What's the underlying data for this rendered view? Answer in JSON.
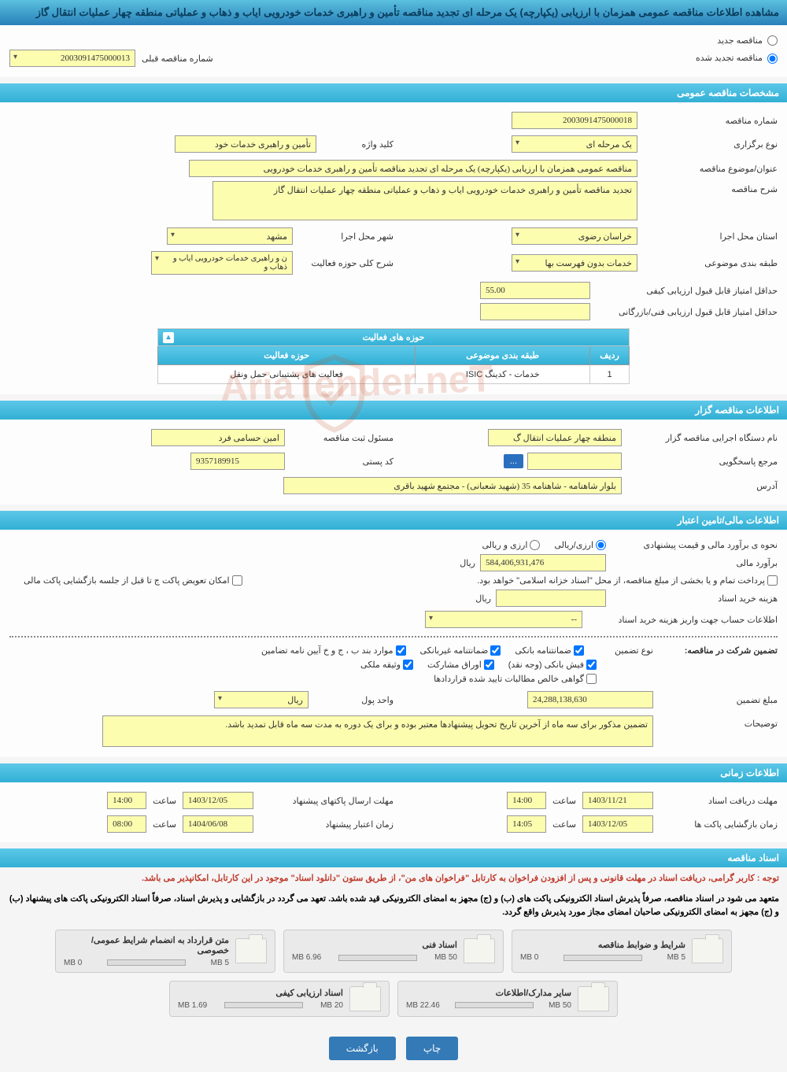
{
  "page_title": "مشاهده اطلاعات مناقصه عمومی همزمان با ارزیابی (یکپارچه) یک مرحله ای تجدید مناقصه تأمین و راهبری خدمات خودرویی ایاب و ذهاب و عملیاتی منطقه چهار عملیات انتقال گاز",
  "tender_type": {
    "option_new": "مناقصه جدید",
    "option_renewed": "مناقصه تجدید شده",
    "prev_number_label": "شماره مناقصه قبلی",
    "prev_number": "2003091475000013"
  },
  "sections": {
    "general": "مشخصات مناقصه عمومی",
    "holder": "اطلاعات مناقصه گزار",
    "financial": "اطلاعات مالی/تامین اعتبار",
    "timing": "اطلاعات زمانی",
    "documents": "اسناد مناقصه"
  },
  "general": {
    "tender_number_label": "شماره مناقصه",
    "tender_number": "2003091475000018",
    "hold_type_label": "نوع برگزاری",
    "hold_type": "یک مرحله ای",
    "keyword_label": "کلید واژه",
    "keyword": "تأمین و راهبری خدمات خود",
    "subject_label": "عنوان/موضوع مناقصه",
    "subject": "مناقصه عمومی همزمان با ارزیابی (یکپارچه) یک مرحله ای تجدید مناقصه تأمین و راهبری خدمات خودرویی",
    "description_label": "شرح مناقصه",
    "description": "تجدید مناقصه تأمین و راهبری خدمات خودرویی ایاب و ذهاب و عملیاتی منطقه چهار عملیات انتقال گاز",
    "province_label": "استان محل اجرا",
    "province": "خراسان رضوی",
    "city_label": "شهر محل اجرا",
    "city": "مشهد",
    "category_label": "طبقه بندی موضوعی",
    "category": "خدمات بدون فهرست بها",
    "activity_desc_label": "شرح کلی حوزه فعالیت",
    "activity_desc": "ن و راهبری خدمات خودرویی ایاب و ذهاب و",
    "min_quality_score_label": "حداقل امتیاز قابل قبول ارزیابی کیفی",
    "min_quality_score": "55.00",
    "min_tech_score_label": "حداقل امتیاز قابل قبول ارزیابی فنی/بازرگانی",
    "min_tech_score": ""
  },
  "activity_table": {
    "title": "حوزه های فعالیت",
    "col_row": "ردیف",
    "col_category": "طبقه بندی موضوعی",
    "col_domain": "حوزه فعالیت",
    "rows": [
      {
        "idx": "1",
        "category": "خدمات - کدینگ ISIC",
        "domain": "فعالیت های پشتیبانی حمل ونقل"
      }
    ]
  },
  "holder": {
    "exec_org_label": "نام دستگاه اجرایی مناقصه گزار",
    "exec_org": "منطقه چهار عملیات انتقال گ",
    "registrar_label": "مسئول ثبت مناقصه",
    "registrar": "امین حسامی فرد",
    "response_ref_label": "مرجع پاسخگویی",
    "response_ref": "",
    "more_btn": "...",
    "postal_label": "کد پستی",
    "postal": "9357189915",
    "address_label": "آدرس",
    "address": "بلوار شاهنامه - شاهنامه 35 (شهید شعبانی) - مجتمع شهید باقری"
  },
  "financial": {
    "estimate_method_label": "نحوه ی برآورد مالی و قیمت پیشنهادی",
    "opt_currency_rial": "ارزی/ریالی",
    "opt_currency_both": "ارزی و ریالی",
    "estimate_label": "برآورد مالی",
    "estimate_value": "584,406,931,476",
    "currency_rial": "ریال",
    "payment_note": "پرداخت تمام و یا بخشی از مبلغ مناقصه، از محل \"اسناد خزانه اسلامی\" خواهد بود.",
    "envelope_swap_note": "امکان تعویض پاکت ج تا قبل از جلسه بازگشایی پاکت مالی",
    "doc_purchase_label": "هزینه خرید اسناد",
    "doc_purchase_value": "",
    "account_info_label": "اطلاعات حساب جهت واریز هزینه خرید اسناد",
    "account_info_value": "--"
  },
  "guarantee": {
    "participate_label": "تضمین شرکت در مناقصه:",
    "type_label": "نوع تضمین",
    "type_bank_guarantee": "ضمانتنامه بانکی",
    "type_nonbank_guarantee": "ضمانتنامه غیربانکی",
    "type_items_bpjkh": "موارد بند ب ، ج و خ آیین نامه تضامین",
    "type_bank_receipt": "فیش بانکی (وجه نقد)",
    "type_bonds": "اوراق مشارکت",
    "type_property": "وثیقه ملکی",
    "type_claims": "گواهی خالص مطالبات تایید شده قراردادها",
    "amount_label": "مبلغ تضمین",
    "amount_value": "24,288,138,630",
    "currency_unit_label": "واحد پول",
    "currency_unit_value": "ریال",
    "note_label": "توضیحات",
    "note_text": "تضمین مذکور برای سه ماه از آخرین تاریخ تحویل پیشنهادها معتبر بوده و برای یک دوره به مدت سه ماه قابل تمدید باشد."
  },
  "timing": {
    "doc_deadline_label": "مهلت دریافت اسناد",
    "doc_deadline_date": "1403/11/21",
    "time_label": "ساعت",
    "doc_deadline_time": "14:00",
    "submit_deadline_label": "مهلت ارسال پاکتهای پیشنهاد",
    "submit_deadline_date": "1403/12/05",
    "submit_deadline_time": "14:00",
    "opening_label": "زمان بازگشایی پاکت ها",
    "opening_date": "1403/12/05",
    "opening_time": "14:05",
    "validity_label": "زمان اعتبار پیشنهاد",
    "validity_date": "1404/06/08",
    "validity_time": "08:00"
  },
  "notices": {
    "line1": "توجه : کاربر گرامی، دریافت اسناد در مهلت قانونی و پس از افزودن فراخوان به کارتابل \"فراخوان های من\"، از طریق ستون \"دانلود اسناد\" موجود در این کارتابل، امکانپذیر می باشد.",
    "line2": "متعهد می شود در اسناد مناقصه، صرفاً پذیرش اسناد الکترونیکی پاکت های (ب) و (ج) مجهز به امضای الکترونیکی قید شده باشد. تعهد می گردد در بازگشایی و پذیرش اسناد، صرفاً اسناد الکترونیکی پاکت های پیشنهاد (ب) و (ج) مجهز به امضای الکترونیکی صاحبان امضای مجاز مورد پذیرش واقع گردد."
  },
  "documents": [
    {
      "title": "شرایط و ضوابط مناقصه",
      "used": "0 MB",
      "total": "5 MB",
      "pct": 0
    },
    {
      "title": "اسناد فنی",
      "used": "6.96 MB",
      "total": "50 MB",
      "pct": 14
    },
    {
      "title": "متن قرارداد به انضمام شرایط عمومی/خصوصی",
      "used": "0 MB",
      "total": "5 MB",
      "pct": 0
    },
    {
      "title": "سایر مدارک/اطلاعات",
      "used": "22.46 MB",
      "total": "50 MB",
      "pct": 45
    },
    {
      "title": "اسناد ارزیابی کیفی",
      "used": "1.69 MB",
      "total": "20 MB",
      "pct": 9
    }
  ],
  "buttons": {
    "print": "چاپ",
    "back": "بازگشت"
  },
  "watermark": "AriaTender.neT"
}
